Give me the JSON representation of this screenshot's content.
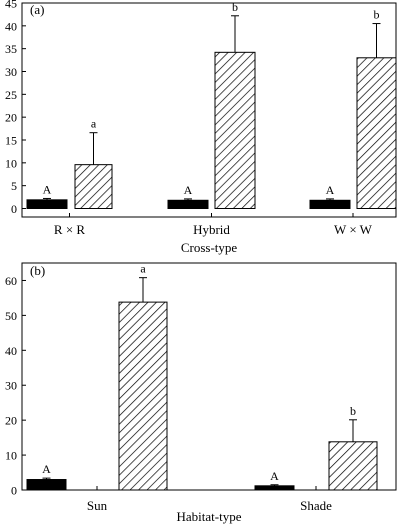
{
  "chart_data": [
    {
      "type": "bar",
      "panel_label": "(a)",
      "xlabel": "Cross-type",
      "ylabel": "",
      "categories": [
        "R × R",
        "Hybrid",
        "W × W"
      ],
      "ylim": [
        0,
        45
      ],
      "yticks": [
        0,
        5,
        10,
        15,
        20,
        25,
        30,
        35,
        40,
        45
      ],
      "grid": false,
      "legend": "none",
      "series": [
        {
          "fill": "solid",
          "values": [
            1.9,
            1.8,
            1.8
          ],
          "errors": [
            0.3,
            0.3,
            0.3
          ],
          "letters": [
            "A",
            "A",
            "A"
          ]
        },
        {
          "fill": "hatched",
          "values": [
            9.6,
            34.2,
            33.0
          ],
          "errors": [
            7.0,
            8.0,
            7.5
          ],
          "letters": [
            "a",
            "b",
            "b"
          ]
        }
      ]
    },
    {
      "type": "bar",
      "panel_label": "(b)",
      "xlabel": "Habitat-type",
      "ylabel": "",
      "categories": [
        "Sun",
        "Shade"
      ],
      "ylim": [
        0,
        65
      ],
      "yticks": [
        0,
        10,
        20,
        30,
        40,
        50,
        60
      ],
      "grid": false,
      "legend": "none",
      "series": [
        {
          "fill": "solid",
          "values": [
            3.0,
            1.2
          ],
          "errors": [
            0.4,
            0.3
          ],
          "letters": [
            "A",
            "A"
          ]
        },
        {
          "fill": "hatched",
          "values": [
            53.8,
            13.8
          ],
          "errors": [
            7.0,
            6.3
          ],
          "letters": [
            "a",
            "b"
          ]
        }
      ]
    }
  ],
  "colors": {
    "ink": "#000000",
    "background": "#ffffff"
  }
}
